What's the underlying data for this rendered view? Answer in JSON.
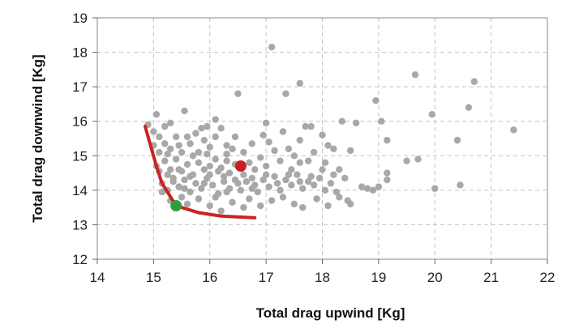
{
  "chart_data": {
    "type": "scatter",
    "title": "",
    "xlabel": "Total drag upwind [Kg]",
    "ylabel": "Total drag downwind [Kg]",
    "xlim": [
      14,
      22
    ],
    "ylim": [
      12,
      19
    ],
    "x_ticks": [
      "14",
      "15",
      "16",
      "17",
      "18",
      "19",
      "20",
      "21",
      "22"
    ],
    "y_ticks": [
      "12",
      "13",
      "14",
      "15",
      "16",
      "17",
      "18",
      "19"
    ],
    "grid": true,
    "grid_style": "dashed",
    "colors": {
      "points": "#a8a8a8",
      "front": "#cc2222",
      "highlight_red": "#c81e1e",
      "highlight_green": "#2e9e3a"
    },
    "series": [
      {
        "points": [
          [
            14.9,
            15.9
          ],
          [
            15.05,
            16.2
          ],
          [
            15.0,
            15.7
          ],
          [
            15.1,
            15.55
          ],
          [
            15.2,
            15.85
          ],
          [
            15.3,
            15.95
          ],
          [
            15.0,
            15.3
          ],
          [
            15.1,
            15.1
          ],
          [
            15.2,
            15.35
          ],
          [
            15.3,
            15.2
          ],
          [
            15.45,
            15.3
          ],
          [
            15.55,
            16.3
          ],
          [
            15.6,
            15.55
          ],
          [
            15.7,
            15.0
          ],
          [
            15.8,
            15.1
          ],
          [
            15.9,
            15.45
          ],
          [
            16.0,
            15.25
          ],
          [
            16.1,
            15.55
          ],
          [
            16.2,
            15.8
          ],
          [
            16.3,
            15.3
          ],
          [
            16.4,
            15.2
          ],
          [
            16.45,
            15.55
          ],
          [
            16.1,
            16.05
          ],
          [
            15.85,
            15.8
          ],
          [
            15.95,
            15.85
          ],
          [
            15.05,
            14.7
          ],
          [
            15.1,
            14.55
          ],
          [
            15.2,
            14.85
          ],
          [
            15.3,
            14.6
          ],
          [
            15.4,
            14.9
          ],
          [
            15.5,
            14.55
          ],
          [
            15.6,
            14.75
          ],
          [
            15.7,
            14.45
          ],
          [
            15.8,
            14.8
          ],
          [
            15.9,
            14.6
          ],
          [
            16.0,
            14.45
          ],
          [
            16.1,
            14.9
          ],
          [
            16.2,
            14.65
          ],
          [
            16.3,
            14.85
          ],
          [
            16.35,
            14.5
          ],
          [
            16.45,
            14.75
          ],
          [
            16.6,
            14.45
          ],
          [
            16.7,
            14.8
          ],
          [
            16.8,
            14.6
          ],
          [
            16.9,
            14.95
          ],
          [
            17.0,
            14.7
          ],
          [
            15.15,
            14.2
          ],
          [
            15.25,
            14.0
          ],
          [
            15.35,
            14.35
          ],
          [
            15.45,
            14.1
          ],
          [
            15.55,
            14.3
          ],
          [
            15.65,
            13.95
          ],
          [
            15.75,
            14.2
          ],
          [
            15.85,
            14.05
          ],
          [
            15.95,
            14.35
          ],
          [
            16.05,
            14.15
          ],
          [
            16.15,
            13.9
          ],
          [
            16.25,
            14.25
          ],
          [
            16.35,
            14.05
          ],
          [
            16.45,
            14.3
          ],
          [
            16.55,
            14.0
          ],
          [
            16.65,
            14.25
          ],
          [
            16.75,
            14.05
          ],
          [
            16.85,
            13.95
          ],
          [
            16.95,
            14.3
          ],
          [
            17.05,
            14.1
          ],
          [
            17.15,
            14.4
          ],
          [
            17.25,
            14.0
          ],
          [
            17.35,
            14.3
          ],
          [
            17.45,
            14.15
          ],
          [
            17.55,
            14.45
          ],
          [
            17.65,
            14.05
          ],
          [
            17.75,
            14.25
          ],
          [
            17.85,
            14.15
          ],
          [
            17.95,
            14.35
          ],
          [
            18.05,
            14.0
          ],
          [
            18.15,
            14.2
          ],
          [
            15.3,
            13.7
          ],
          [
            15.5,
            13.8
          ],
          [
            15.6,
            13.6
          ],
          [
            15.8,
            13.75
          ],
          [
            16.0,
            13.55
          ],
          [
            16.1,
            13.8
          ],
          [
            16.2,
            13.4
          ],
          [
            16.4,
            13.65
          ],
          [
            16.6,
            13.5
          ],
          [
            16.7,
            13.75
          ],
          [
            16.9,
            13.55
          ],
          [
            17.1,
            13.7
          ],
          [
            17.3,
            13.8
          ],
          [
            17.5,
            13.6
          ],
          [
            17.65,
            13.5
          ],
          [
            17.9,
            13.75
          ],
          [
            18.1,
            13.55
          ],
          [
            18.3,
            13.8
          ],
          [
            18.5,
            13.6
          ],
          [
            16.95,
            15.6
          ],
          [
            17.0,
            15.95
          ],
          [
            17.05,
            15.4
          ],
          [
            17.15,
            15.15
          ],
          [
            17.3,
            15.7
          ],
          [
            17.4,
            15.2
          ],
          [
            17.5,
            15.0
          ],
          [
            17.6,
            15.45
          ],
          [
            17.7,
            15.85
          ],
          [
            17.75,
            14.85
          ],
          [
            17.85,
            15.1
          ],
          [
            18.0,
            15.6
          ],
          [
            18.05,
            14.8
          ],
          [
            18.1,
            15.3
          ],
          [
            18.2,
            15.2
          ],
          [
            18.3,
            14.6
          ],
          [
            18.35,
            16.0
          ],
          [
            18.5,
            15.15
          ],
          [
            18.7,
            14.1
          ],
          [
            18.8,
            14.05
          ],
          [
            18.9,
            14.0
          ],
          [
            19.0,
            14.1
          ],
          [
            19.15,
            14.3
          ],
          [
            19.15,
            14.5
          ],
          [
            18.95,
            16.6
          ],
          [
            19.05,
            16.0
          ],
          [
            19.5,
            14.85
          ],
          [
            19.7,
            14.9
          ],
          [
            20.0,
            14.05
          ],
          [
            20.45,
            14.15
          ],
          [
            20.4,
            15.45
          ],
          [
            19.95,
            16.2
          ],
          [
            20.6,
            16.4
          ],
          [
            19.65,
            17.35
          ],
          [
            20.7,
            17.15
          ],
          [
            21.4,
            15.75
          ],
          [
            17.1,
            18.15
          ],
          [
            17.6,
            17.1
          ],
          [
            16.5,
            16.8
          ],
          [
            17.35,
            16.8
          ],
          [
            17.8,
            15.85
          ],
          [
            18.6,
            15.95
          ],
          [
            19.15,
            15.45
          ],
          [
            15.25,
            15.05
          ],
          [
            15.4,
            15.55
          ],
          [
            15.65,
            15.35
          ],
          [
            15.75,
            15.65
          ],
          [
            15.35,
            14.25
          ],
          [
            15.45,
            14.6
          ],
          [
            15.65,
            14.4
          ],
          [
            15.9,
            14.2
          ],
          [
            16.0,
            14.7
          ],
          [
            16.25,
            14.4
          ],
          [
            16.5,
            14.2
          ],
          [
            16.15,
            14.55
          ],
          [
            16.3,
            13.95
          ],
          [
            16.55,
            14.65
          ],
          [
            16.75,
            14.35
          ],
          [
            16.8,
            14.15
          ],
          [
            17.0,
            14.45
          ],
          [
            17.2,
            14.2
          ],
          [
            17.4,
            14.45
          ],
          [
            17.6,
            14.25
          ],
          [
            17.8,
            14.4
          ],
          [
            18.0,
            14.6
          ],
          [
            18.2,
            14.45
          ],
          [
            18.4,
            14.35
          ],
          [
            18.25,
            13.95
          ],
          [
            18.45,
            13.7
          ],
          [
            15.5,
            15.1
          ],
          [
            15.95,
            15.05
          ],
          [
            16.3,
            15.05
          ],
          [
            16.6,
            15.1
          ],
          [
            16.75,
            15.35
          ],
          [
            17.25,
            14.85
          ],
          [
            17.45,
            14.6
          ],
          [
            17.6,
            14.8
          ],
          [
            15.25,
            14.45
          ],
          [
            15.15,
            13.95
          ],
          [
            15.55,
            14.05
          ]
        ]
      }
    ],
    "front_line": [
      [
        14.85,
        15.85
      ],
      [
        15.05,
        14.7
      ],
      [
        15.15,
        14.2
      ],
      [
        15.4,
        13.55
      ],
      [
        15.8,
        13.35
      ],
      [
        16.2,
        13.25
      ],
      [
        16.8,
        13.2
      ]
    ],
    "highlights": [
      {
        "color_key": "highlight_red",
        "point": [
          16.55,
          14.7
        ]
      },
      {
        "color_key": "highlight_green",
        "point": [
          15.4,
          13.55
        ]
      }
    ]
  }
}
